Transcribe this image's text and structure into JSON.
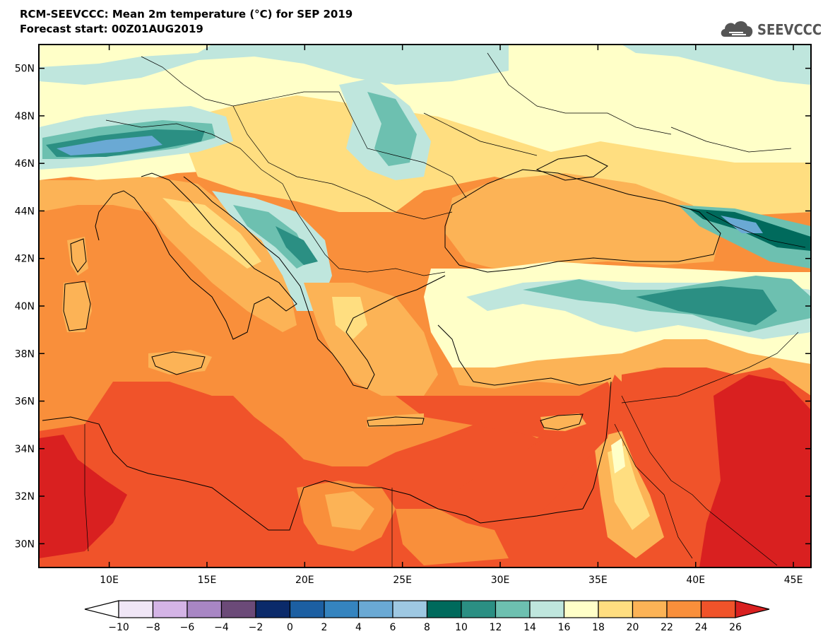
{
  "title_line1": "RCM-SEEVCCC: Mean 2m temperature (°C) for SEP 2019",
  "title_line2": "Forecast start: 00Z01AUG2019",
  "logo": {
    "text": "SEEVCCC",
    "icon": "cloud-logo-icon"
  },
  "map": {
    "projection": "lat-lon",
    "lon_range": [
      6.4,
      45.9
    ],
    "lat_range": [
      29.0,
      51.0
    ],
    "lat_ticks": [
      {
        "value": 50,
        "label": "50N"
      },
      {
        "value": 48,
        "label": "48N"
      },
      {
        "value": 46,
        "label": "46N"
      },
      {
        "value": 44,
        "label": "44N"
      },
      {
        "value": 42,
        "label": "42N"
      },
      {
        "value": 40,
        "label": "40N"
      },
      {
        "value": 38,
        "label": "38N"
      },
      {
        "value": 36,
        "label": "36N"
      },
      {
        "value": 34,
        "label": "34N"
      },
      {
        "value": 32,
        "label": "32N"
      },
      {
        "value": 30,
        "label": "30N"
      }
    ],
    "lon_ticks": [
      {
        "value": 10,
        "label": "10E"
      },
      {
        "value": 15,
        "label": "15E"
      },
      {
        "value": 20,
        "label": "20E"
      },
      {
        "value": 25,
        "label": "25E"
      },
      {
        "value": 30,
        "label": "30E"
      },
      {
        "value": 35,
        "label": "35E"
      },
      {
        "value": 40,
        "label": "40E"
      },
      {
        "value": 45,
        "label": "45E"
      }
    ]
  },
  "colorbar": {
    "unit": "°C",
    "levels": [
      -10,
      -8,
      -6,
      -4,
      -2,
      0,
      2,
      4,
      6,
      8,
      10,
      12,
      14,
      16,
      18,
      20,
      22,
      24,
      26
    ],
    "labels": [
      "−10",
      "−8",
      "−6",
      "−4",
      "−2",
      "0",
      "2",
      "4",
      "6",
      "8",
      "10",
      "12",
      "14",
      "16",
      "18",
      "20",
      "22",
      "24",
      "26"
    ],
    "under_color": "#ffffff",
    "over_color": "#d92020",
    "colors": [
      "#f0e6f6",
      "#d4b4e6",
      "#a886c4",
      "#6b4a78",
      "#0b2a6a",
      "#1c5fa2",
      "#3584bf",
      "#6aa9d4",
      "#9ec8e2",
      "#006a5c",
      "#2b8f83",
      "#6dc0b0",
      "#bfe6dd",
      "#ffffc8",
      "#ffde80",
      "#fcb356",
      "#f98f3b",
      "#f0532a"
    ]
  },
  "colors_legend": {
    "sea_mediterranean": "#f98f3b",
    "sea_black": "#fcb356",
    "hot_desert": "#d92020",
    "alps": "#3584bf"
  }
}
